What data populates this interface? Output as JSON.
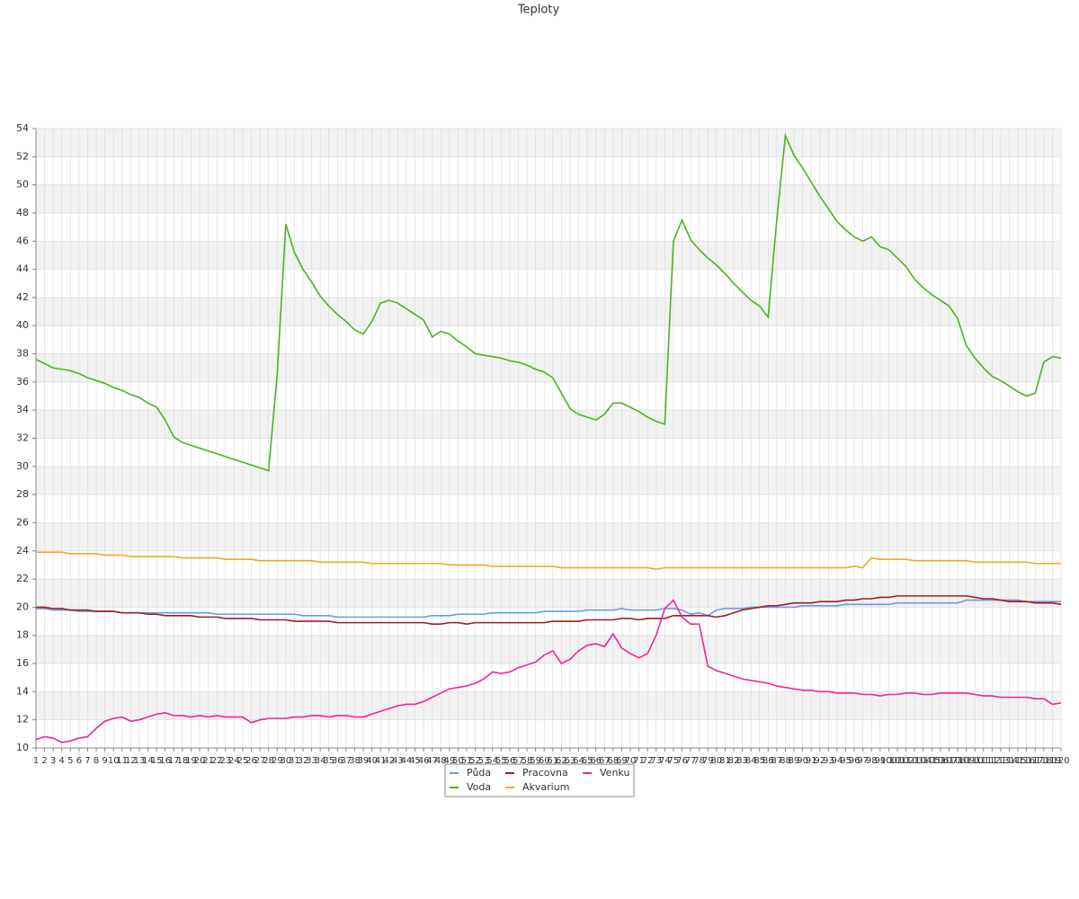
{
  "chart_data": {
    "type": "line",
    "title": "Teploty",
    "categories": [
      1,
      2,
      3,
      4,
      5,
      6,
      7,
      8,
      9,
      10,
      11,
      12,
      13,
      14,
      15,
      16,
      17,
      18,
      19,
      20,
      21,
      22,
      23,
      24,
      25,
      26,
      27,
      28,
      29,
      30,
      31,
      32,
      33,
      34,
      35,
      36,
      37,
      38,
      39,
      40,
      41,
      42,
      43,
      44,
      45,
      46,
      47,
      48,
      49,
      50,
      51,
      52,
      53,
      54,
      55,
      56,
      57,
      58,
      59,
      60,
      61,
      62,
      63,
      64,
      65,
      66,
      67,
      68,
      69,
      70,
      71,
      72,
      73,
      74,
      75,
      76,
      77,
      78,
      79,
      80,
      81,
      82,
      83,
      84,
      85,
      86,
      87,
      88,
      89,
      90,
      91,
      92,
      93,
      94,
      95,
      96,
      97,
      98,
      99,
      100,
      101,
      102,
      103,
      104,
      105,
      106,
      107,
      108,
      109,
      110,
      111,
      112,
      113,
      114,
      115,
      116,
      117,
      118,
      119,
      120
    ],
    "series": [
      {
        "name": "Půda",
        "color": "#6a9ae0",
        "values": [
          19.9,
          19.9,
          19.8,
          19.8,
          19.8,
          19.7,
          19.7,
          19.7,
          19.7,
          19.7,
          19.6,
          19.6,
          19.6,
          19.6,
          19.6,
          19.6,
          19.6,
          19.6,
          19.6,
          19.6,
          19.6,
          19.5,
          19.5,
          19.5,
          19.5,
          19.5,
          19.5,
          19.5,
          19.5,
          19.5,
          19.5,
          19.4,
          19.4,
          19.4,
          19.4,
          19.3,
          19.3,
          19.3,
          19.3,
          19.3,
          19.3,
          19.3,
          19.3,
          19.3,
          19.3,
          19.3,
          19.4,
          19.4,
          19.4,
          19.5,
          19.5,
          19.5,
          19.5,
          19.6,
          19.6,
          19.6,
          19.6,
          19.6,
          19.6,
          19.7,
          19.7,
          19.7,
          19.7,
          19.7,
          19.8,
          19.8,
          19.8,
          19.8,
          19.9,
          19.8,
          19.8,
          19.8,
          19.8,
          19.9,
          19.9,
          19.8,
          19.5,
          19.6,
          19.4,
          19.8,
          19.9,
          19.9,
          19.9,
          20.0,
          20.0,
          20.0,
          20.0,
          20.0,
          20.0,
          20.1,
          20.1,
          20.1,
          20.1,
          20.1,
          20.2,
          20.2,
          20.2,
          20.2,
          20.2,
          20.2,
          20.3,
          20.3,
          20.3,
          20.3,
          20.3,
          20.3,
          20.3,
          20.3,
          20.5,
          20.5,
          20.5,
          20.5,
          20.5,
          20.5,
          20.5,
          20.4,
          20.4,
          20.4,
          20.4,
          20.4
        ]
      },
      {
        "name": "Voda",
        "color": "#4cb21e",
        "values": [
          37.6,
          37.3,
          37.0,
          36.9,
          36.8,
          36.6,
          36.3,
          36.1,
          35.9,
          35.6,
          35.4,
          35.1,
          34.9,
          34.5,
          34.2,
          33.3,
          32.1,
          31.7,
          31.5,
          31.3,
          31.1,
          30.9,
          30.7,
          30.5,
          30.3,
          30.1,
          29.9,
          29.7,
          36.5,
          47.2,
          45.2,
          44.0,
          43.1,
          42.1,
          41.4,
          40.8,
          40.3,
          39.7,
          39.4,
          40.3,
          41.6,
          41.8,
          41.6,
          41.2,
          40.8,
          40.4,
          39.2,
          39.6,
          39.4,
          38.9,
          38.5,
          38.0,
          37.9,
          37.8,
          37.7,
          37.5,
          37.4,
          37.2,
          36.9,
          36.7,
          36.3,
          35.2,
          34.1,
          33.7,
          33.5,
          33.3,
          33.7,
          34.5,
          34.5,
          34.2,
          33.9,
          33.5,
          33.2,
          33.0,
          46.0,
          47.5,
          46.1,
          45.4,
          44.8,
          44.3,
          43.7,
          43.0,
          42.4,
          41.8,
          41.4,
          40.6,
          47.5,
          53.5,
          52.1,
          51.2,
          50.2,
          49.2,
          48.3,
          47.4,
          46.8,
          46.3,
          46.0,
          46.3,
          45.6,
          45.4,
          44.8,
          44.2,
          43.3,
          42.7,
          42.2,
          41.8,
          41.4,
          40.5,
          38.6,
          37.7,
          37.0,
          36.4,
          36.1,
          35.7,
          35.3,
          35.0,
          35.2,
          37.4,
          37.8,
          37.7
        ]
      },
      {
        "name": "Pracovna",
        "color": "#a31c1c",
        "values": [
          20.0,
          20.0,
          19.9,
          19.9,
          19.8,
          19.8,
          19.8,
          19.7,
          19.7,
          19.7,
          19.6,
          19.6,
          19.6,
          19.5,
          19.5,
          19.4,
          19.4,
          19.4,
          19.4,
          19.3,
          19.3,
          19.3,
          19.2,
          19.2,
          19.2,
          19.2,
          19.1,
          19.1,
          19.1,
          19.1,
          19.0,
          19.0,
          19.0,
          19.0,
          19.0,
          18.9,
          18.9,
          18.9,
          18.9,
          18.9,
          18.9,
          18.9,
          18.9,
          18.9,
          18.9,
          18.9,
          18.8,
          18.8,
          18.9,
          18.9,
          18.8,
          18.9,
          18.9,
          18.9,
          18.9,
          18.9,
          18.9,
          18.9,
          18.9,
          18.9,
          19.0,
          19.0,
          19.0,
          19.0,
          19.1,
          19.1,
          19.1,
          19.1,
          19.2,
          19.2,
          19.1,
          19.2,
          19.2,
          19.2,
          19.4,
          19.4,
          19.4,
          19.4,
          19.4,
          19.3,
          19.4,
          19.6,
          19.8,
          19.9,
          20.0,
          20.1,
          20.1,
          20.2,
          20.3,
          20.3,
          20.3,
          20.4,
          20.4,
          20.4,
          20.5,
          20.5,
          20.6,
          20.6,
          20.7,
          20.7,
          20.8,
          20.8,
          20.8,
          20.8,
          20.8,
          20.8,
          20.8,
          20.8,
          20.8,
          20.7,
          20.6,
          20.6,
          20.5,
          20.4,
          20.4,
          20.4,
          20.3,
          20.3,
          20.3,
          20.2
        ]
      },
      {
        "name": "Akvarium",
        "color": "#f5a623",
        "values": [
          23.9,
          23.9,
          23.9,
          23.9,
          23.8,
          23.8,
          23.8,
          23.8,
          23.7,
          23.7,
          23.7,
          23.6,
          23.6,
          23.6,
          23.6,
          23.6,
          23.6,
          23.5,
          23.5,
          23.5,
          23.5,
          23.5,
          23.4,
          23.4,
          23.4,
          23.4,
          23.3,
          23.3,
          23.3,
          23.3,
          23.3,
          23.3,
          23.3,
          23.2,
          23.2,
          23.2,
          23.2,
          23.2,
          23.2,
          23.1,
          23.1,
          23.1,
          23.1,
          23.1,
          23.1,
          23.1,
          23.1,
          23.1,
          23.0,
          23.0,
          23.0,
          23.0,
          23.0,
          22.9,
          22.9,
          22.9,
          22.9,
          22.9,
          22.9,
          22.9,
          22.9,
          22.8,
          22.8,
          22.8,
          22.8,
          22.8,
          22.8,
          22.8,
          22.8,
          22.8,
          22.8,
          22.8,
          22.7,
          22.8,
          22.8,
          22.8,
          22.8,
          22.8,
          22.8,
          22.8,
          22.8,
          22.8,
          22.8,
          22.8,
          22.8,
          22.8,
          22.8,
          22.8,
          22.8,
          22.8,
          22.8,
          22.8,
          22.8,
          22.8,
          22.8,
          22.9,
          22.8,
          23.5,
          23.4,
          23.4,
          23.4,
          23.4,
          23.3,
          23.3,
          23.3,
          23.3,
          23.3,
          23.3,
          23.3,
          23.2,
          23.2,
          23.2,
          23.2,
          23.2,
          23.2,
          23.2,
          23.1,
          23.1,
          23.1,
          23.1
        ]
      },
      {
        "name": "Venku",
        "color": "#f0259a",
        "values": [
          10.6,
          10.8,
          10.7,
          10.4,
          10.5,
          10.7,
          10.8,
          11.4,
          11.9,
          12.1,
          12.2,
          11.9,
          12.0,
          12.2,
          12.4,
          12.5,
          12.3,
          12.3,
          12.2,
          12.3,
          12.2,
          12.3,
          12.2,
          12.2,
          12.2,
          11.8,
          12.0,
          12.1,
          12.1,
          12.1,
          12.2,
          12.2,
          12.3,
          12.3,
          12.2,
          12.3,
          12.3,
          12.2,
          12.2,
          12.4,
          12.6,
          12.8,
          13.0,
          13.1,
          13.1,
          13.3,
          13.6,
          13.9,
          14.2,
          14.3,
          14.4,
          14.6,
          14.9,
          15.4,
          15.3,
          15.4,
          15.7,
          15.9,
          16.1,
          16.6,
          16.9,
          16.0,
          16.3,
          16.9,
          17.3,
          17.4,
          17.2,
          18.1,
          17.1,
          16.7,
          16.4,
          16.7,
          18.0,
          19.9,
          20.5,
          19.3,
          18.8,
          18.8,
          15.8,
          15.5,
          15.3,
          15.1,
          14.9,
          14.8,
          14.7,
          14.6,
          14.4,
          14.3,
          14.2,
          14.1,
          14.1,
          14.0,
          14.0,
          13.9,
          13.9,
          13.9,
          13.8,
          13.8,
          13.7,
          13.8,
          13.8,
          13.9,
          13.9,
          13.8,
          13.8,
          13.9,
          13.9,
          13.9,
          13.9,
          13.8,
          13.7,
          13.7,
          13.6,
          13.6,
          13.6,
          13.6,
          13.5,
          13.5,
          13.1,
          13.2
        ]
      }
    ],
    "ylim": [
      10,
      54
    ],
    "yticks": [
      10,
      12,
      14,
      16,
      18,
      20,
      22,
      24,
      26,
      28,
      30,
      32,
      34,
      36,
      38,
      40,
      42,
      44,
      46,
      48,
      50,
      52,
      54
    ],
    "grid": true
  }
}
